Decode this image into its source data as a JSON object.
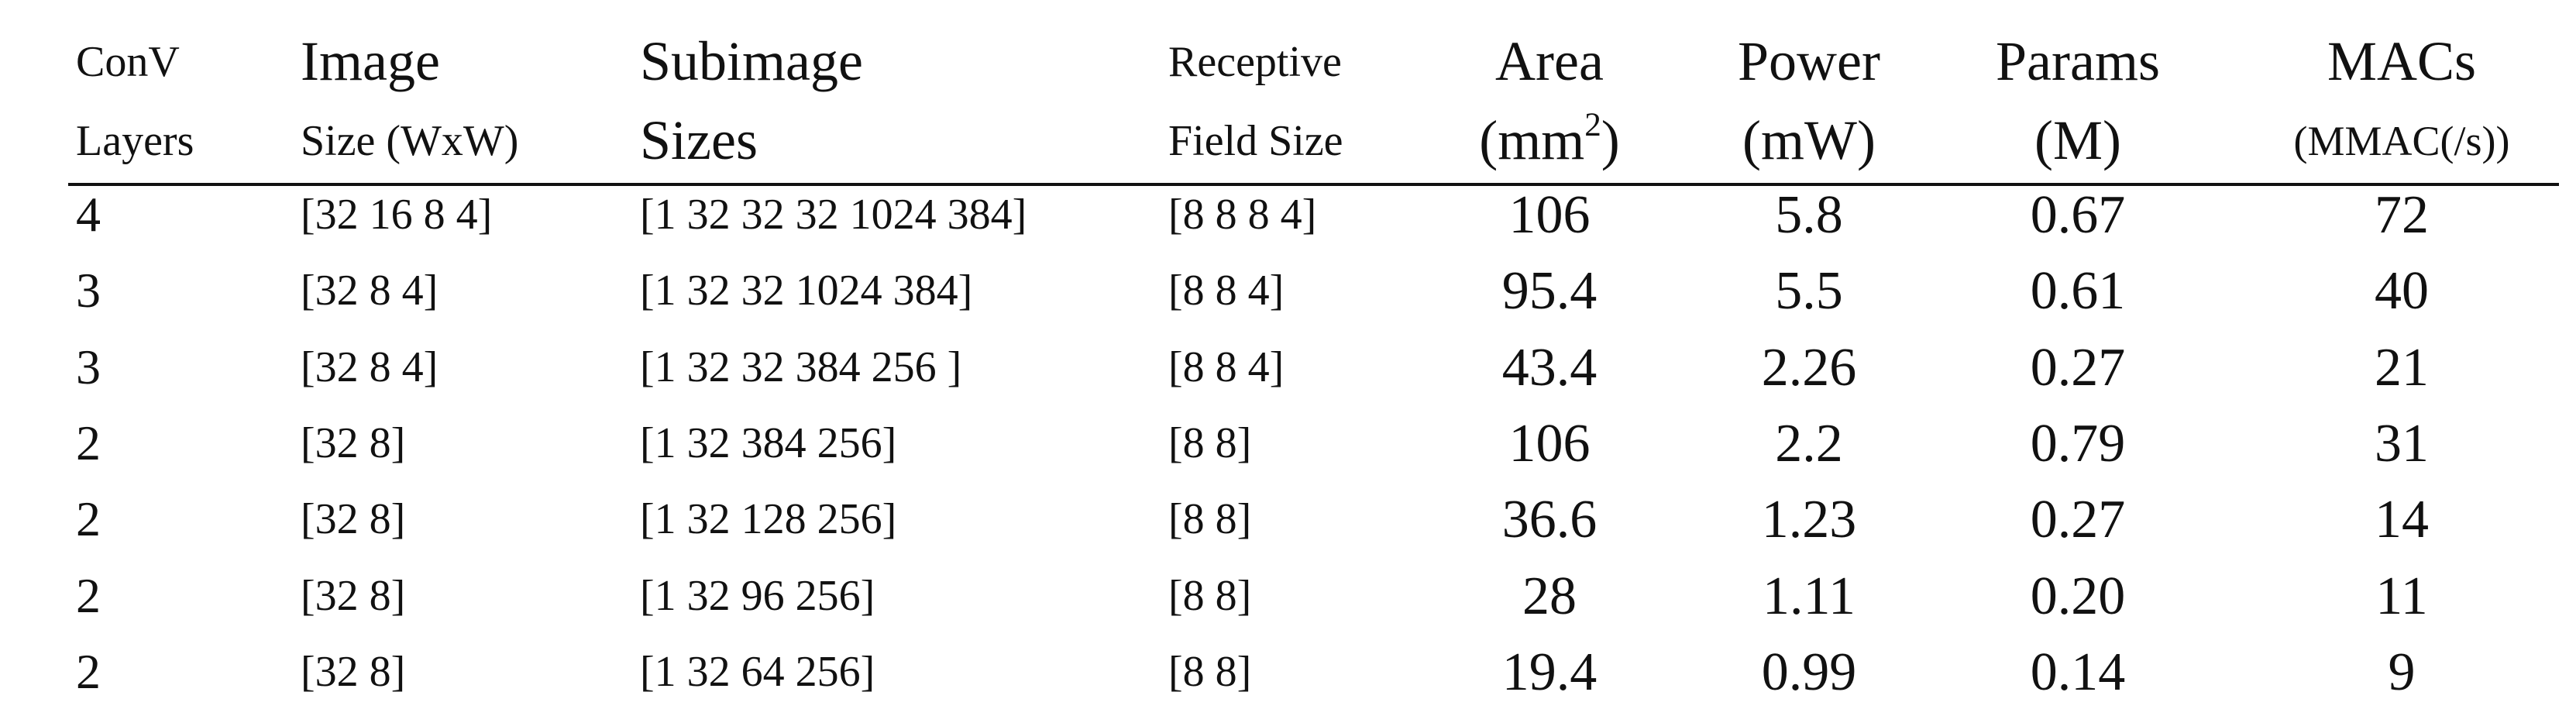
{
  "table": {
    "header": [
      {
        "lines": [
          "ConV",
          "Layers"
        ]
      },
      {
        "lines": [
          "Image",
          "Size (WxW)"
        ]
      },
      {
        "lines": [
          "Subimage",
          "Sizes"
        ]
      },
      {
        "lines": [
          "Receptive",
          "Field Size"
        ]
      },
      {
        "lines": [
          "Area",
          {
            "text": "(mm",
            "sup": "2",
            "tail": ")"
          }
        ]
      },
      {
        "lines": [
          "Power",
          "(mW)"
        ]
      },
      {
        "lines": [
          "Params",
          "(M)"
        ]
      },
      {
        "lines": [
          "MACs",
          "(MMAC(/s))"
        ]
      }
    ],
    "rows": [
      [
        "4",
        "[32 16 8 4]",
        "[1 32 32 32 1024 384]",
        "[8 8 8 4]",
        "106",
        "5.8",
        "0.67",
        "72"
      ],
      [
        "3",
        "[32 8 4]",
        "[1 32 32 1024 384]",
        "[8 8 4]",
        "95.4",
        "5.5",
        "0.61",
        "40"
      ],
      [
        "3",
        "[32 8 4]",
        "[1 32 32 384 256 ]",
        "[8 8 4]",
        "43.4",
        "2.26",
        "0.27",
        "21"
      ],
      [
        "2",
        "[32 8]",
        "[1 32 384 256]",
        "[8 8]",
        "106",
        "2.2",
        "0.79",
        "31"
      ],
      [
        "2",
        "[32 8]",
        "[1 32 128 256]",
        "[8 8]",
        "36.6",
        "1.23",
        "0.27",
        "14"
      ],
      [
        "2",
        "[32 8]",
        "[1 32 96 256]",
        "[8 8]",
        "28",
        "1.11",
        "0.20",
        "11"
      ],
      [
        "2",
        "[32 8]",
        "[1 32 64 256]",
        "[8 8]",
        "19.4",
        "0.99",
        "0.14",
        "9"
      ]
    ]
  }
}
